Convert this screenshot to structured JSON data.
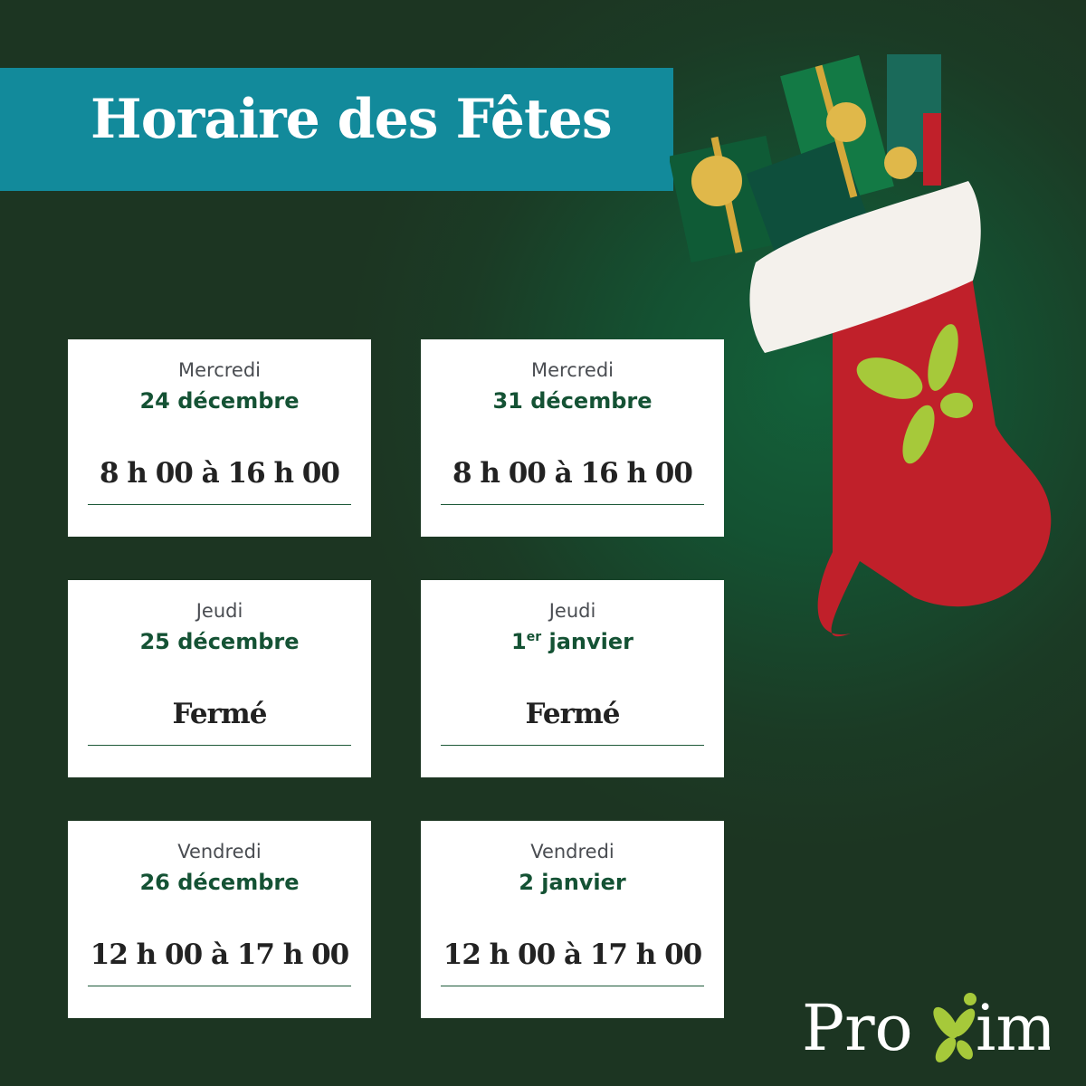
{
  "header": {
    "title": "Horaire des Fêtes"
  },
  "cards": [
    {
      "day": "Mercredi",
      "date": "24 décembre",
      "hours": "8 h 00 à 16 h 00"
    },
    {
      "day": "Mercredi",
      "date": "31 décembre",
      "hours": "8 h 00 à 16 h 00"
    },
    {
      "day": "Jeudi",
      "date": "25 décembre",
      "hours": "Fermé"
    },
    {
      "day": "Jeudi",
      "date_num": "1",
      "date_sup": "er",
      "date_rest": " janvier",
      "hours": "Fermé"
    },
    {
      "day": "Vendredi",
      "date": "26 décembre",
      "hours": "12 h 00 à 17 h 00"
    },
    {
      "day": "Vendredi",
      "date": "2 janvier",
      "hours": "12 h 00 à 17 h 00"
    }
  ],
  "logo": {
    "text": "Proxim"
  },
  "colors": {
    "background": "#1c3522",
    "banner": "#128a9b",
    "date_text": "#145234",
    "stocking": "#c0202a",
    "leaf": "#a6c93a"
  }
}
